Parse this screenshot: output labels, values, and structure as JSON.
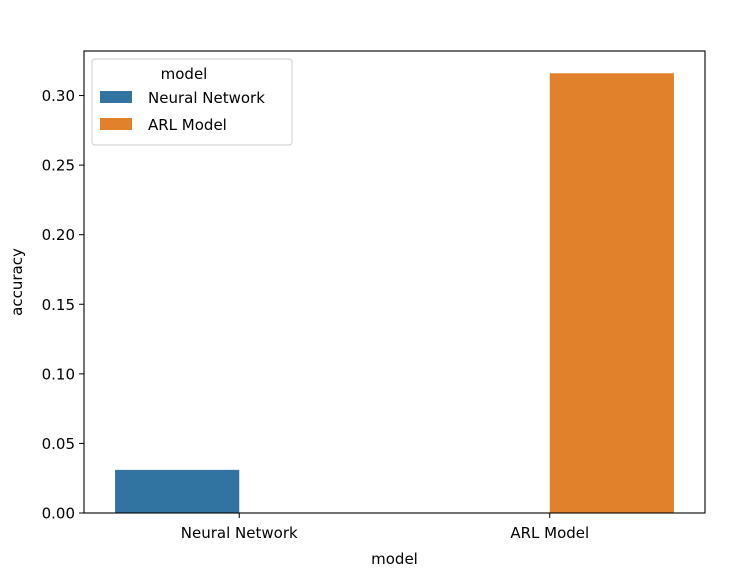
{
  "chart_data": {
    "type": "bar",
    "categories": [
      "Neural Network",
      "ARL Model"
    ],
    "hue_levels": [
      "Neural Network",
      "ARL Model"
    ],
    "series": [
      {
        "name": "Neural Network",
        "color": "#3274a1",
        "values": [
          0.031,
          null
        ]
      },
      {
        "name": "ARL Model",
        "color": "#e1812c",
        "values": [
          null,
          0.316
        ]
      }
    ],
    "title": "",
    "xlabel": "model",
    "ylabel": "accuracy",
    "ylim": [
      0,
      0.332
    ],
    "yticks": [
      0.0,
      0.05,
      0.1,
      0.15,
      0.2,
      0.25,
      0.3
    ],
    "ytick_labels": [
      "0.00",
      "0.05",
      "0.10",
      "0.15",
      "0.20",
      "0.25",
      "0.30"
    ],
    "grid": false,
    "legend": {
      "title": "model",
      "placement": "top-left",
      "entries": [
        "Neural Network",
        "ARL Model"
      ]
    }
  }
}
